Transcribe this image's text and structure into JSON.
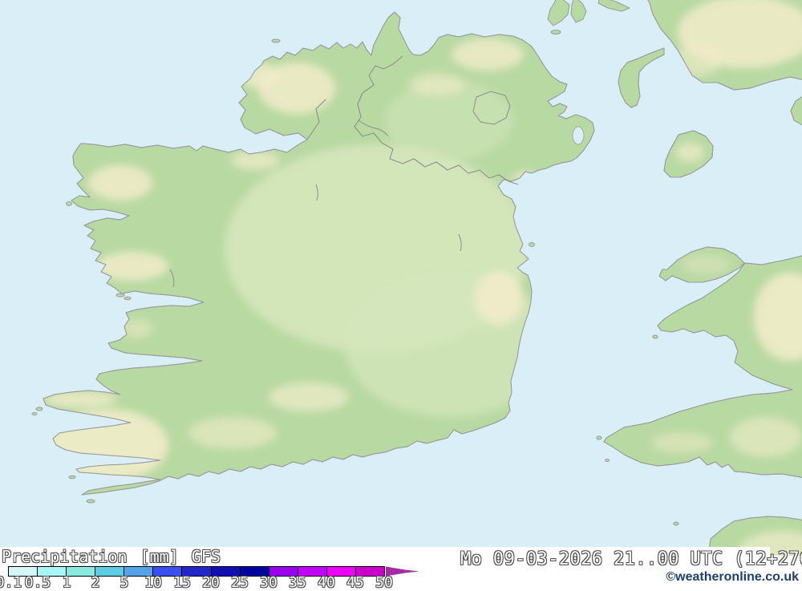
{
  "colors": {
    "sea": "#d9eef7",
    "land": "#b9d9a3",
    "land_light": "#d5e7bc",
    "terrain_highlight": "#f1ecca",
    "coastline": "#9a9a9a",
    "border": "#8d8d8d",
    "band_bg": "#ffffff",
    "text_outline": "#4f4f4f",
    "credit_text": "#1d3f6d",
    "scale_arrow": "#a52ba5"
  },
  "map": {
    "region": "Ireland",
    "layer": "precipitation"
  },
  "legend": {
    "title": "Precipitation [mm] GFS",
    "parameter": "Precipitation",
    "unit": "[mm]",
    "model": "GFS",
    "scale": {
      "ticks": [
        "0.1",
        "0.5",
        "1",
        "2",
        "5",
        "10",
        "15",
        "20",
        "25",
        "30",
        "35",
        "40",
        "45",
        "50"
      ],
      "colors": [
        "#d5f6f6",
        "#aaf5f5",
        "#8aeae2",
        "#5ecde1",
        "#55a2e8",
        "#3a50ee",
        "#2127c9",
        "#0f0fb4",
        "#0000a0",
        "#9900f0",
        "#c200ff",
        "#ee00ff",
        "#cc00cc"
      ]
    }
  },
  "footer": {
    "valid_datetime": "Mo 09-03-2026 21..00 UTC (12+276",
    "credit": "©weatheronline.co.uk"
  }
}
